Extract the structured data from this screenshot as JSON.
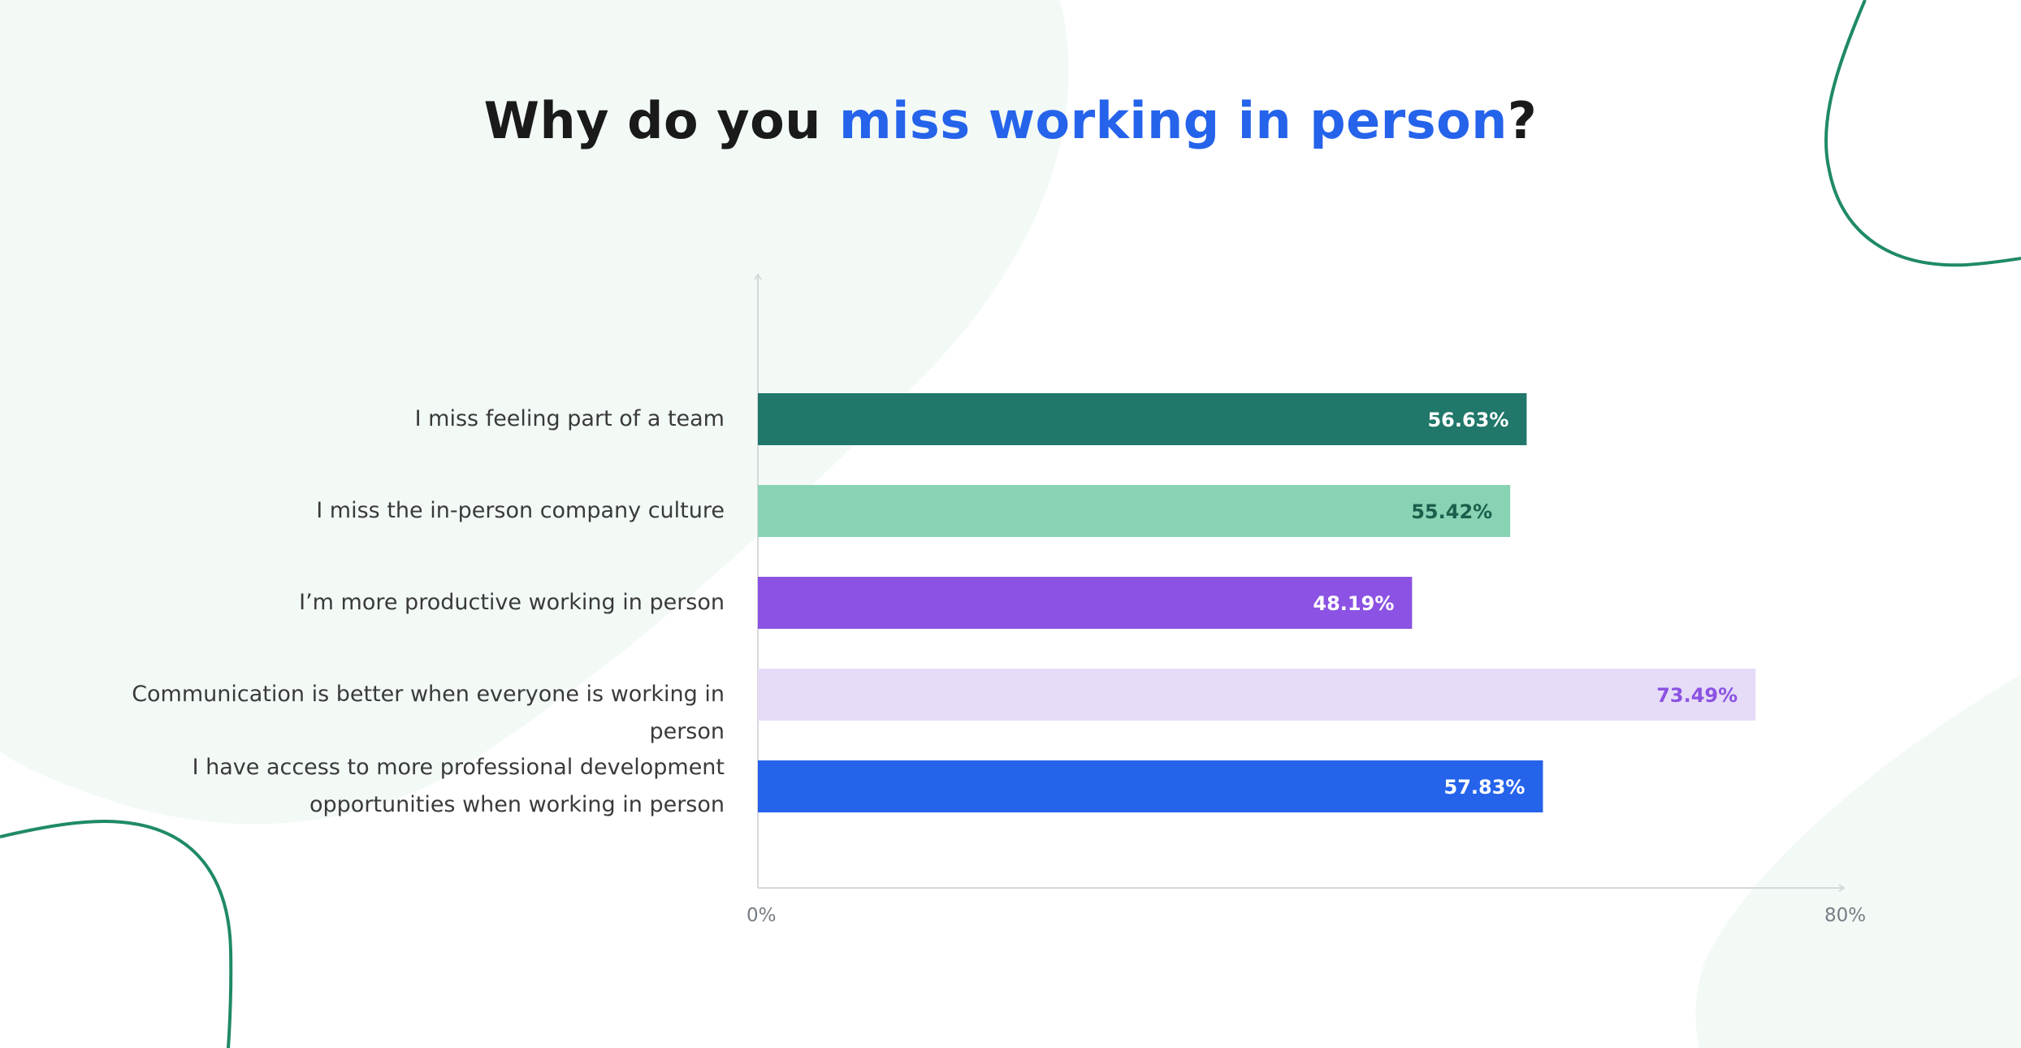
{
  "title": {
    "prefix": "Why do you ",
    "highlight": "miss working in person",
    "suffix": "?"
  },
  "colors": {
    "title_highlight": "#2563eb",
    "decor_line": "#1f8a66",
    "decor_blob": "#f2faf5",
    "axis": "#d6d8dc"
  },
  "chart_data": {
    "type": "bar",
    "orientation": "horizontal",
    "categories": [
      "I miss feeling part of a team",
      "I miss the in-person company culture",
      "I’m more productive working in person",
      "Communication is better when everyone is working in person",
      "I have access to more professional development opportunities when working in person"
    ],
    "category_lines": [
      [
        "I miss feeling part of a team"
      ],
      [
        "I miss the in-person company culture"
      ],
      [
        "I’m more productive working in person"
      ],
      [
        "Communication is better when everyone is working in person"
      ],
      [
        "I have access to more professional development",
        "opportunities when working in person"
      ]
    ],
    "values": [
      56.63,
      55.42,
      48.19,
      73.49,
      57.83
    ],
    "value_labels": [
      "56.63%",
      "55.42%",
      "48.19%",
      "73.49%",
      "57.83%"
    ],
    "bar_colors": [
      "#20776a",
      "#88d3b3",
      "#8b52e3",
      "#e6dcf7",
      "#2563eb"
    ],
    "label_colors": [
      "#ffffff",
      "#1b5e4c",
      "#ffffff",
      "#8b52e3",
      "#ffffff"
    ],
    "xlim": [
      0,
      80
    ],
    "tick_labels": [
      "0%",
      "80%"
    ],
    "grid": false,
    "legend": "none"
  }
}
